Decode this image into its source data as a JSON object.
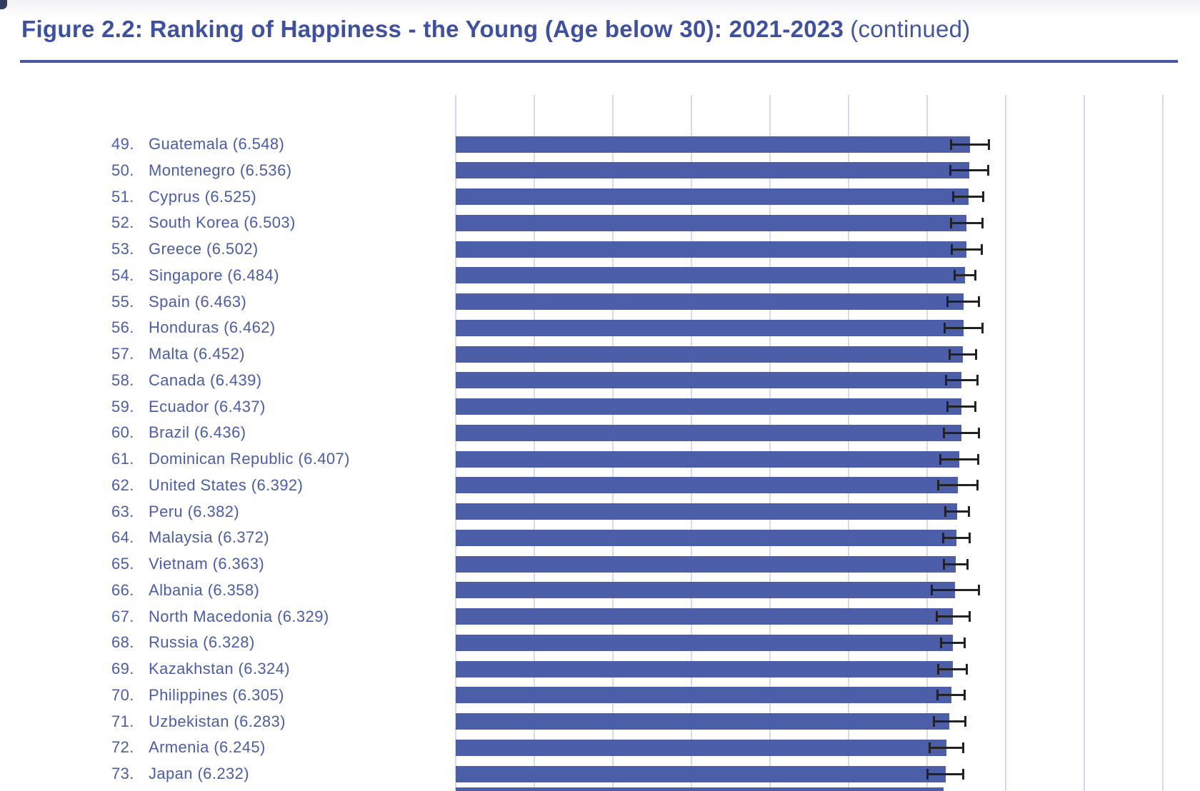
{
  "page": {
    "title_bold": "Figure 2.2: Ranking of Happiness - the Young (Age below 30): 2021-2023",
    "title_continued": "(continued)"
  },
  "chart_data": {
    "type": "bar",
    "orientation": "horizontal",
    "title": "Figure 2.2: Ranking of Happiness - the Young (Age below 30): 2021-2023 (continued)",
    "xlabel": "",
    "ylabel": "",
    "xlim": [
      0,
      9.47
    ],
    "x_gridlines": [
      0,
      1,
      2,
      3,
      4,
      5,
      6,
      7,
      8,
      9
    ],
    "x_axis_labels_visible": false,
    "grid_on": true,
    "legend": "none",
    "label_format": "rank. name (score)",
    "colors": {
      "bar": "#4d5ea8",
      "gridline": "#d6d9eb",
      "error_bar": "#222222",
      "label_text": "#4b5cab",
      "title_text": "#3e50a3",
      "title_rule": "#4456a8"
    },
    "rows": [
      {
        "rank": "49",
        "name": "Guatemala",
        "score": 6.548,
        "ci": 0.24
      },
      {
        "rank": "50",
        "name": "Montenegro",
        "score": 6.536,
        "ci": 0.24
      },
      {
        "rank": "51",
        "name": "Cyprus",
        "score": 6.525,
        "ci": 0.19
      },
      {
        "rank": "52",
        "name": "South Korea",
        "score": 6.503,
        "ci": 0.2
      },
      {
        "rank": "53",
        "name": "Greece",
        "score": 6.502,
        "ci": 0.19
      },
      {
        "rank": "54",
        "name": "Singapore",
        "score": 6.484,
        "ci": 0.13
      },
      {
        "rank": "55",
        "name": "Spain",
        "score": 6.463,
        "ci": 0.2
      },
      {
        "rank": "56",
        "name": "Honduras",
        "score": 6.462,
        "ci": 0.24
      },
      {
        "rank": "57",
        "name": "Malta",
        "score": 6.452,
        "ci": 0.17
      },
      {
        "rank": "58",
        "name": "Canada",
        "score": 6.439,
        "ci": 0.2
      },
      {
        "rank": "59",
        "name": "Ecuador",
        "score": 6.437,
        "ci": 0.18
      },
      {
        "rank": "60",
        "name": "Brazil",
        "score": 6.436,
        "ci": 0.22
      },
      {
        "rank": "61",
        "name": "Dominican Republic",
        "score": 6.407,
        "ci": 0.24
      },
      {
        "rank": "62",
        "name": "United States",
        "score": 6.392,
        "ci": 0.25
      },
      {
        "rank": "63",
        "name": "Peru",
        "score": 6.382,
        "ci": 0.15
      },
      {
        "rank": "64",
        "name": "Malaysia",
        "score": 6.372,
        "ci": 0.17
      },
      {
        "rank": "65",
        "name": "Vietnam",
        "score": 6.363,
        "ci": 0.15
      },
      {
        "rank": "66",
        "name": "Albania",
        "score": 6.358,
        "ci": 0.3
      },
      {
        "rank": "67",
        "name": "North Macedonia",
        "score": 6.329,
        "ci": 0.21
      },
      {
        "rank": "68",
        "name": "Russia",
        "score": 6.328,
        "ci": 0.15
      },
      {
        "rank": "69",
        "name": "Kazakhstan",
        "score": 6.324,
        "ci": 0.18
      },
      {
        "rank": "70",
        "name": "Philippines",
        "score": 6.305,
        "ci": 0.17
      },
      {
        "rank": "71",
        "name": "Uzbekistan",
        "score": 6.283,
        "ci": 0.2
      },
      {
        "rank": "72",
        "name": "Armenia",
        "score": 6.245,
        "ci": 0.21
      },
      {
        "rank": "73",
        "name": "Japan",
        "score": 6.232,
        "ci": 0.23
      }
    ],
    "partial_next_bar": {
      "score": 6.21
    }
  }
}
